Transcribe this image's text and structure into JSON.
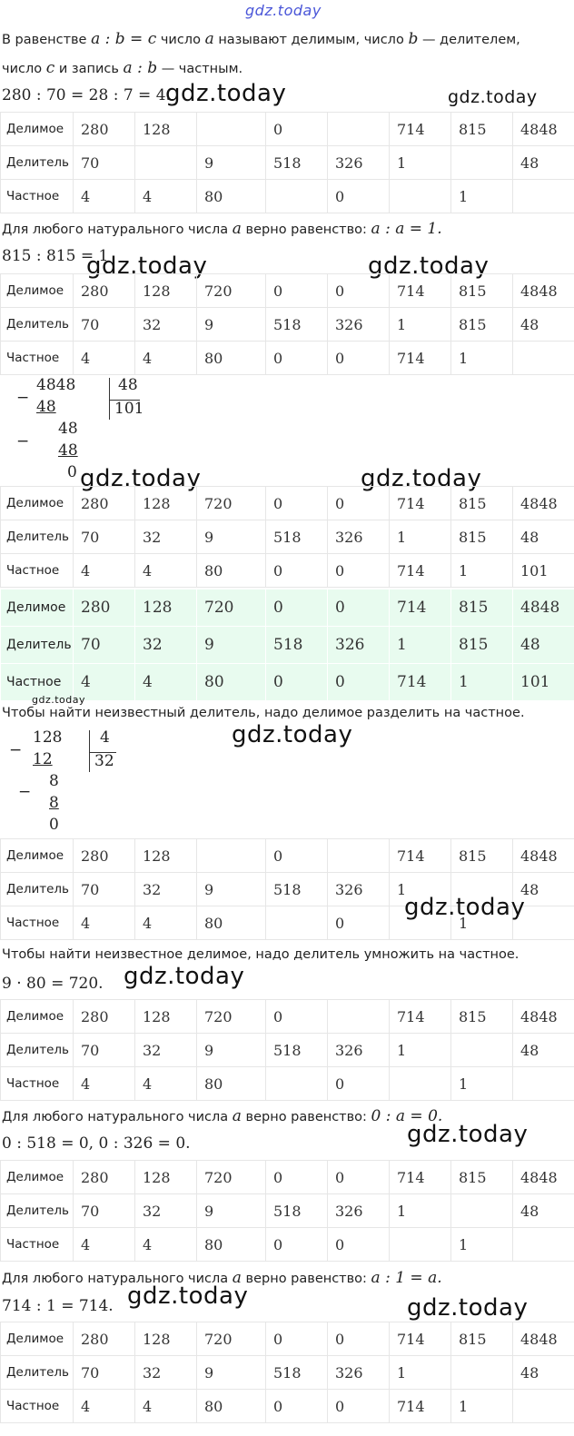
{
  "watermarks": {
    "top": "gdz.today",
    "main": "gdz.today",
    "tiny": "gdz.today"
  },
  "intro": {
    "p1": "В равенстве",
    "eq": "a : b = c",
    "p2": "число",
    "a": "a",
    "p3": "называют делимым, число",
    "b": "b",
    "p4": "— делителем,",
    "p5": "число",
    "c": "c",
    "p6": "и запись",
    "ab": "a : b",
    "p7": "— частным."
  },
  "eq1": "280 : 70 = 28 : 7 = 4.",
  "row_labels": [
    "Делимое",
    "Делитель",
    "Частное"
  ],
  "tables": [
    [
      [
        "280",
        "128",
        "",
        "0",
        "",
        "714",
        "815",
        "4848"
      ],
      [
        "70",
        "",
        "9",
        "518",
        "326",
        "1",
        "",
        "48"
      ],
      [
        "4",
        "4",
        "80",
        "",
        "0",
        "",
        "1",
        ""
      ]
    ],
    [
      [
        "280",
        "128",
        "720",
        "0",
        "0",
        "714",
        "815",
        "4848"
      ],
      [
        "70",
        "32",
        "9",
        "518",
        "326",
        "1",
        "815",
        "48"
      ],
      [
        "4",
        "4",
        "80",
        "0",
        "0",
        "714",
        "1",
        ""
      ]
    ],
    [
      [
        "280",
        "128",
        "720",
        "0",
        "0",
        "714",
        "815",
        "4848"
      ],
      [
        "70",
        "32",
        "9",
        "518",
        "326",
        "1",
        "815",
        "48"
      ],
      [
        "4",
        "4",
        "80",
        "0",
        "0",
        "714",
        "1",
        "101"
      ]
    ],
    [
      [
        "280",
        "128",
        "720",
        "0",
        "0",
        "714",
        "815",
        "4848"
      ],
      [
        "70",
        "32",
        "9",
        "518",
        "326",
        "1",
        "815",
        "48"
      ],
      [
        "4",
        "4",
        "80",
        "0",
        "0",
        "714",
        "1",
        "101"
      ]
    ],
    [
      [
        "280",
        "128",
        "",
        "0",
        "",
        "714",
        "815",
        "4848"
      ],
      [
        "70",
        "32",
        "9",
        "518",
        "326",
        "1",
        "",
        "48"
      ],
      [
        "4",
        "4",
        "80",
        "",
        "0",
        "",
        "1",
        ""
      ]
    ],
    [
      [
        "280",
        "128",
        "720",
        "0",
        "",
        "714",
        "815",
        "4848"
      ],
      [
        "70",
        "32",
        "9",
        "518",
        "326",
        "1",
        "",
        "48"
      ],
      [
        "4",
        "4",
        "80",
        "",
        "0",
        "",
        "1",
        ""
      ]
    ],
    [
      [
        "280",
        "128",
        "720",
        "0",
        "0",
        "714",
        "815",
        "4848"
      ],
      [
        "70",
        "32",
        "9",
        "518",
        "326",
        "1",
        "",
        "48"
      ],
      [
        "4",
        "4",
        "80",
        "0",
        "0",
        "",
        "1",
        ""
      ]
    ],
    [
      [
        "280",
        "128",
        "720",
        "0",
        "0",
        "714",
        "815",
        "4848"
      ],
      [
        "70",
        "32",
        "9",
        "518",
        "326",
        "1",
        "",
        "48"
      ],
      [
        "4",
        "4",
        "80",
        "0",
        "0",
        "714",
        "1",
        ""
      ]
    ]
  ],
  "rule_self_prefix": "Для любого натурального числа",
  "rule_self_mid": "верно равенство:",
  "rule_self_eq": "a : a = 1.",
  "eq2": "815 : 815 = 1",
  "div1": {
    "dividend": "4848",
    "sub1": "48",
    "rem1": "48",
    "sub2": "48",
    "rem2": "0",
    "divisor": "48",
    "quotient": "101"
  },
  "rule_divisor": "Чтобы найти неизвестный делитель, надо делимое разделить на частное.",
  "div2": {
    "dividend": "128",
    "sub1": "12",
    "rem1": "8",
    "sub2": "8",
    "rem2": "0",
    "divisor": "4",
    "quotient": "32"
  },
  "rule_dividend": "Чтобы найти неизвестное делимое, надо делитель умножить на частное.",
  "eq3": "9 · 80 = 720.",
  "rule_zero_eq": "0 : a = 0.",
  "eq4": "0 : 518 = 0, 0 : 326 = 0.",
  "rule_one_eq": "a : 1 = a.",
  "eq5": "714 : 1 = 714.",
  "symbol_a": "a",
  "minus": "−"
}
